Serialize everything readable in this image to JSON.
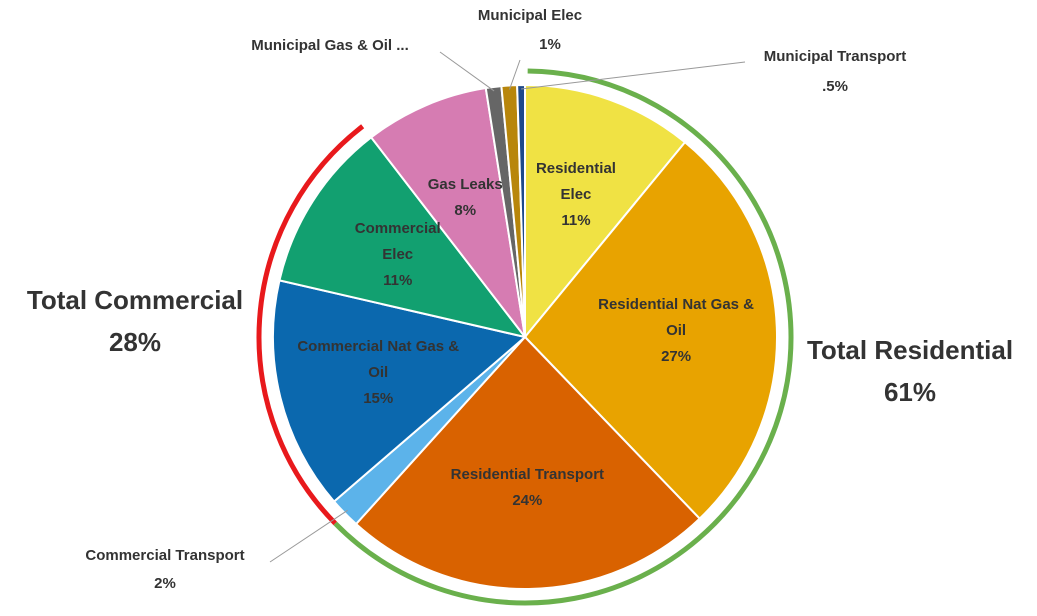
{
  "chart_data": {
    "type": "pie",
    "categories": [
      "Residential Elec",
      "Residential Nat Gas & Oil",
      "Residential Transport",
      "Commercial Transport",
      "Commercial Nat Gas & Oil",
      "Commercial Elec",
      "Gas Leaks",
      "Municipal Gas & Oil ...",
      "Municipal Elec",
      "Municipal Transport"
    ],
    "values": [
      11,
      27,
      24,
      2,
      15,
      11,
      8,
      1,
      1,
      0.5
    ],
    "value_labels": [
      "11%",
      "27%",
      "24%",
      "2%",
      "15%",
      "11%",
      "8%",
      null,
      "1%",
      ".5%"
    ],
    "colors": [
      "#f0e244",
      "#e8a300",
      "#d96200",
      "#5cb3ea",
      "#0b68ae",
      "#12a070",
      "#d67cb2",
      "#666666",
      "#b8860b",
      "#1e4a8a"
    ],
    "annotations": [
      {
        "text": "Total Residential",
        "value": "61%",
        "color": "#6ab04c"
      },
      {
        "text": "Total Commercial",
        "value": "28%",
        "color": "#e8191c"
      }
    ]
  }
}
